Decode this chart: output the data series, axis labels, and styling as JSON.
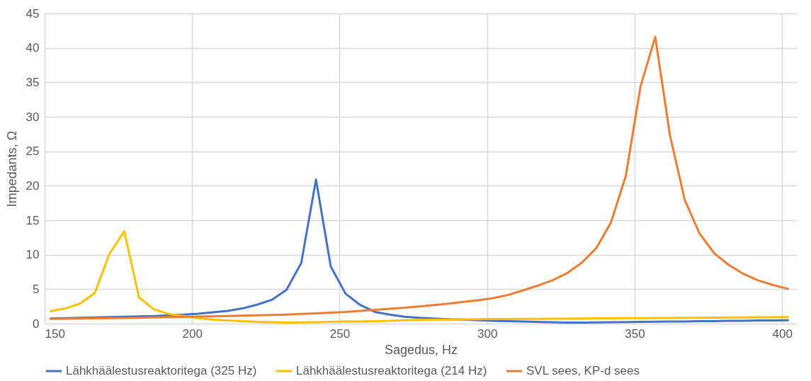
{
  "chart_data": {
    "type": "line",
    "xlabel": "Sagedus, Hz",
    "ylabel": "Impedants, Ω",
    "x": [
      152,
      157,
      162,
      167,
      172,
      177,
      182,
      187,
      192,
      197,
      202,
      207,
      212,
      217,
      222,
      227,
      232,
      237,
      242,
      247,
      252,
      257,
      262,
      267,
      272,
      277,
      282,
      287,
      292,
      297,
      302,
      307,
      312,
      317,
      322,
      327,
      332,
      337,
      342,
      347,
      352,
      357,
      362,
      367,
      372,
      377,
      382,
      387,
      392,
      397,
      402
    ],
    "xlim": [
      150,
      405
    ],
    "xticks": [
      150,
      200,
      250,
      300,
      350,
      400
    ],
    "ylim": [
      0,
      45
    ],
    "yticks": [
      0,
      5,
      10,
      15,
      20,
      25,
      30,
      35,
      40,
      45
    ],
    "grid": true,
    "legend": "bottom",
    "marker": "none",
    "line_style": "solid",
    "series": [
      {
        "name": "Lähkhäälestusreaktoritega (325 Hz)",
        "color": "#4472c4",
        "values": [
          0.75,
          0.8,
          0.85,
          0.9,
          0.95,
          1.0,
          1.05,
          1.1,
          1.2,
          1.3,
          1.45,
          1.65,
          1.85,
          2.2,
          2.75,
          3.45,
          4.9,
          8.8,
          20.9,
          8.3,
          4.35,
          2.7,
          1.7,
          1.3,
          1.0,
          0.85,
          0.75,
          0.65,
          0.6,
          0.5,
          0.4,
          0.35,
          0.3,
          0.25,
          0.2,
          0.15,
          0.15,
          0.18,
          0.2,
          0.22,
          0.25,
          0.27,
          0.3,
          0.32,
          0.35,
          0.37,
          0.4,
          0.42,
          0.45,
          0.47,
          0.5
        ]
      },
      {
        "name": "Lähkhäälestusreaktoritega (214 Hz)",
        "color": "#ffc000",
        "values": [
          1.8,
          2.2,
          2.9,
          4.45,
          10.15,
          13.4,
          3.8,
          2.1,
          1.4,
          1.1,
          0.8,
          0.6,
          0.45,
          0.35,
          0.25,
          0.2,
          0.15,
          0.18,
          0.2,
          0.25,
          0.3,
          0.32,
          0.35,
          0.4,
          0.5,
          0.55,
          0.58,
          0.6,
          0.62,
          0.64,
          0.66,
          0.68,
          0.69,
          0.7,
          0.72,
          0.73,
          0.75,
          0.76,
          0.78,
          0.79,
          0.8,
          0.82,
          0.83,
          0.85,
          0.86,
          0.88,
          0.89,
          0.9,
          0.92,
          0.93,
          0.95
        ]
      },
      {
        "name": "SVL sees, KP-d sees",
        "color": "#ed7d31",
        "values": [
          0.7,
          0.72,
          0.75,
          0.78,
          0.8,
          0.83,
          0.86,
          0.9,
          0.94,
          0.98,
          1.02,
          1.06,
          1.1,
          1.15,
          1.2,
          1.25,
          1.32,
          1.4,
          1.5,
          1.6,
          1.7,
          1.85,
          2.0,
          2.15,
          2.3,
          2.5,
          2.7,
          2.9,
          3.15,
          3.4,
          3.7,
          4.15,
          4.8,
          5.5,
          6.25,
          7.3,
          8.8,
          10.95,
          14.7,
          21.4,
          34.4,
          41.6,
          27.3,
          17.95,
          13.1,
          10.2,
          8.5,
          7.2,
          6.25,
          5.6,
          5.05
        ]
      }
    ]
  }
}
